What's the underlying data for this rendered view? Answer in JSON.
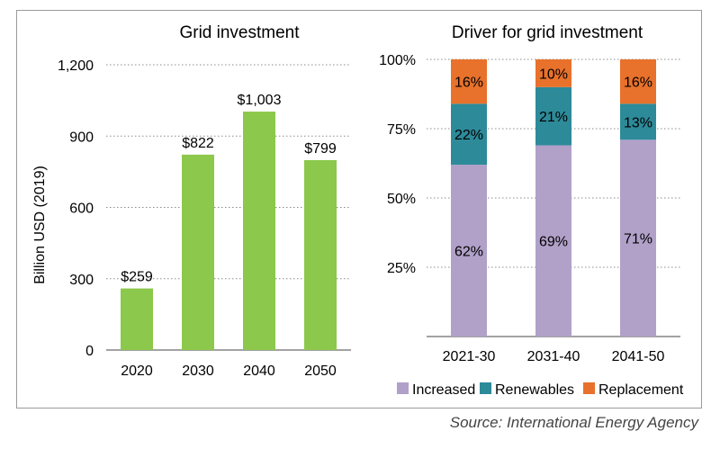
{
  "colors": {
    "bar_green": "#8cc84b",
    "increased": "#b1a1c9",
    "renewables": "#2d8a99",
    "replacement": "#e8712b",
    "grid": "#8c8c8c",
    "axis": "#6b6b6b"
  },
  "source": "Source: International Energy Agency",
  "chart_data": [
    {
      "type": "bar",
      "title": "Grid investment",
      "ylabel": "Billion USD (2019)",
      "xlabel": "",
      "categories": [
        "2020",
        "2030",
        "2040",
        "2050"
      ],
      "values": [
        259,
        822,
        1003,
        799
      ],
      "data_labels": [
        "$259",
        "$822",
        "$1,003",
        "$799"
      ],
      "ylim": [
        0,
        1200
      ],
      "yticks": [
        0,
        300,
        600,
        900,
        1200
      ],
      "ytick_labels": [
        "0",
        "300",
        "600",
        "900",
        "1,200"
      ],
      "grid": true
    },
    {
      "type": "bar",
      "stacked": true,
      "title": "Driver for grid investment",
      "categories": [
        "2021-30",
        "2031-40",
        "2041-50"
      ],
      "series": [
        {
          "name": "Increased",
          "values": [
            62,
            69,
            71
          ],
          "labels": [
            "62%",
            "69%",
            "71%"
          ]
        },
        {
          "name": "Renewables",
          "values": [
            22,
            21,
            13
          ],
          "labels": [
            "22%",
            "21%",
            "13%"
          ]
        },
        {
          "name": "Replacement",
          "values": [
            16,
            10,
            16
          ],
          "labels": [
            "16%",
            "10%",
            "16%"
          ]
        }
      ],
      "ylim": [
        0,
        100
      ],
      "yticks": [
        25,
        50,
        75,
        100
      ],
      "ytick_labels": [
        "25%",
        "50%",
        "75%",
        "100%"
      ],
      "legend_position": "bottom",
      "grid": true
    }
  ]
}
